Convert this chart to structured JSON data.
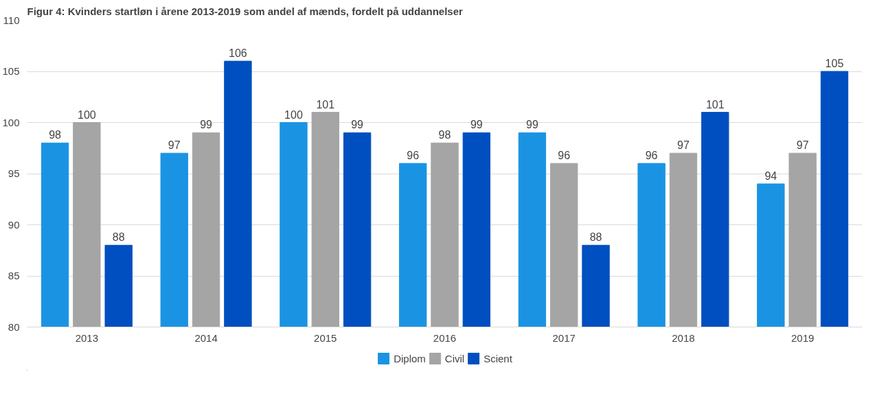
{
  "chart_data": {
    "type": "bar",
    "title": "Figur 4: Kvinders startløn i årene 2013-2019 som andel af mænds, fordelt på uddannelser",
    "categories": [
      "2013",
      "2014",
      "2015",
      "2016",
      "2017",
      "2018",
      "2019"
    ],
    "series": [
      {
        "name": "Diplom",
        "color": "#1a94e2",
        "values": [
          98,
          97,
          100,
          96,
          99,
          96,
          94
        ]
      },
      {
        "name": "Civil",
        "color": "#a5a5a5",
        "values": [
          100,
          99,
          101,
          98,
          96,
          97,
          97
        ]
      },
      {
        "name": "Scient",
        "color": "#004fc0",
        "values": [
          88,
          106,
          99,
          99,
          88,
          101,
          105
        ]
      }
    ],
    "ylim": [
      80,
      110
    ],
    "yticks": [
      80,
      85,
      90,
      95,
      100,
      105,
      110
    ],
    "grid": "y",
    "legend": "bottom",
    "data_labels": true
  }
}
